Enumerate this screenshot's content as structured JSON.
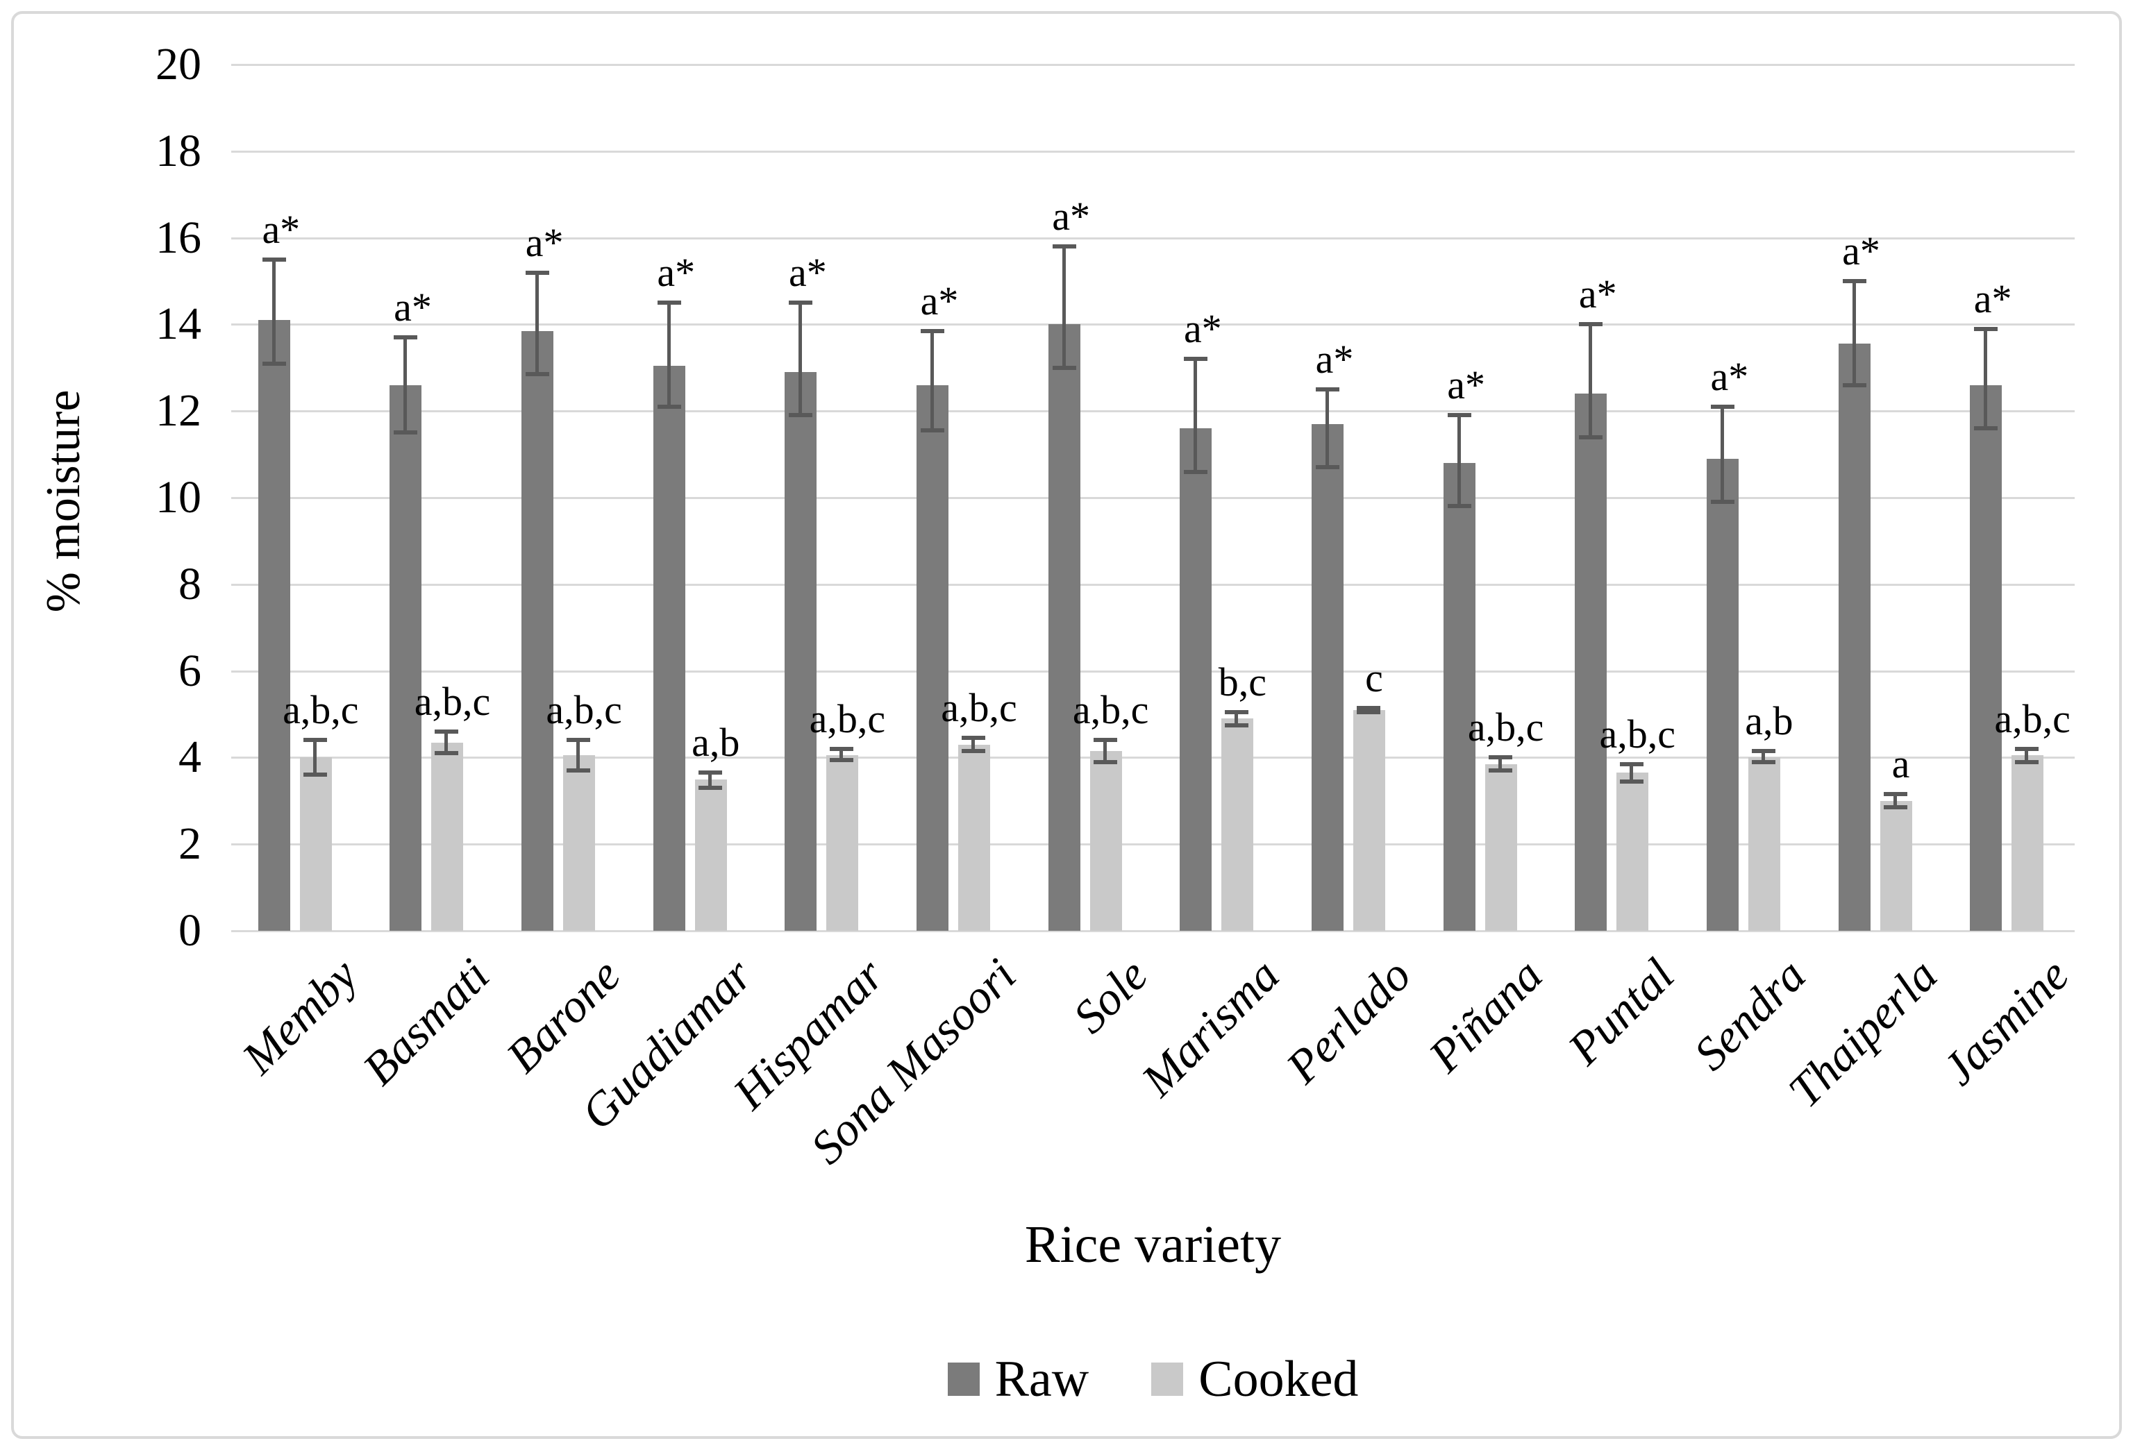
{
  "figure": {
    "background": "#ffffff",
    "border_color": "#d9d9d9"
  },
  "chart_data": {
    "type": "bar",
    "title": "",
    "xlabel": "Rice variety",
    "ylabel": "% moisture",
    "ylim": [
      0,
      20
    ],
    "ytick_step": 2,
    "grid": true,
    "grid_color": "#d9d9d9",
    "error_bar_color": "#595959",
    "legend_position": "bottom",
    "categories": [
      "Memby",
      "Basmati",
      "Barone",
      "Guadiamar",
      "Hispamar",
      "Sona Masoori",
      "Sole",
      "Marisma",
      "Perlado",
      "Piñana",
      "Puntal",
      "Sendra",
      "Thaiperla",
      "Jasmine"
    ],
    "series": [
      {
        "name": "Raw",
        "color": "#7b7b7b",
        "values": [
          14.1,
          12.6,
          13.85,
          13.05,
          12.9,
          12.6,
          14.0,
          11.6,
          11.7,
          10.8,
          12.4,
          10.9,
          13.55,
          12.6
        ],
        "error_low": [
          13.1,
          11.5,
          12.85,
          12.1,
          11.9,
          11.55,
          13.0,
          10.6,
          10.7,
          9.8,
          11.4,
          9.9,
          12.6,
          11.6
        ],
        "error_high": [
          15.5,
          13.7,
          15.2,
          14.5,
          14.5,
          13.85,
          15.8,
          13.2,
          12.5,
          11.9,
          14.0,
          12.1,
          15.0,
          13.9
        ],
        "sig_labels": [
          "a*",
          "a*",
          "a*",
          "a*",
          "a*",
          "a*",
          "a*",
          "a*",
          "a*",
          "a*",
          "a*",
          "a*",
          "a*",
          "a*"
        ]
      },
      {
        "name": "Cooked",
        "color": "#c9c9c9",
        "values": [
          4.0,
          4.35,
          4.05,
          3.5,
          4.05,
          4.3,
          4.15,
          4.9,
          5.1,
          3.85,
          3.65,
          4.0,
          3.0,
          4.05
        ],
        "error_low": [
          3.6,
          4.1,
          3.7,
          3.3,
          3.95,
          4.15,
          3.9,
          4.75,
          5.05,
          3.7,
          3.45,
          3.9,
          2.85,
          3.9
        ],
        "error_high": [
          4.4,
          4.6,
          4.4,
          3.65,
          4.2,
          4.45,
          4.4,
          5.05,
          5.15,
          4.0,
          3.85,
          4.15,
          3.15,
          4.2
        ],
        "sig_labels": [
          "a,b,c",
          "a,b,c",
          "a,b,c",
          "a,b",
          "a,b,c",
          "a,b,c",
          "a,b,c",
          "b,c",
          "c",
          "a,b,c",
          "a,b,c",
          "a,b",
          "a",
          "a,b,c"
        ]
      }
    ]
  }
}
